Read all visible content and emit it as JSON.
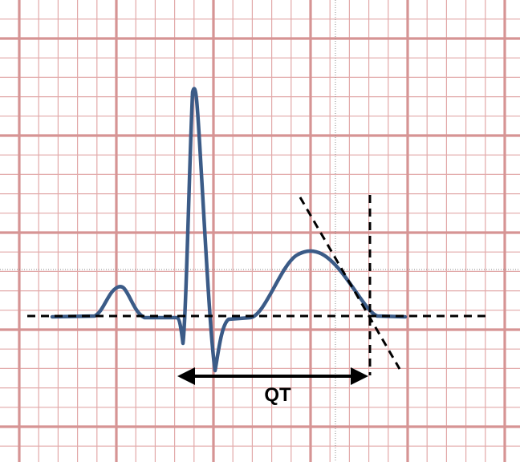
{
  "labels": {
    "interval": "QT"
  },
  "colors": {
    "background": "#ffffff",
    "grid_minor": "#e2a9a9",
    "grid_major": "#d69494",
    "waveform": "#3b5b87",
    "annotation": "#000000"
  }
}
